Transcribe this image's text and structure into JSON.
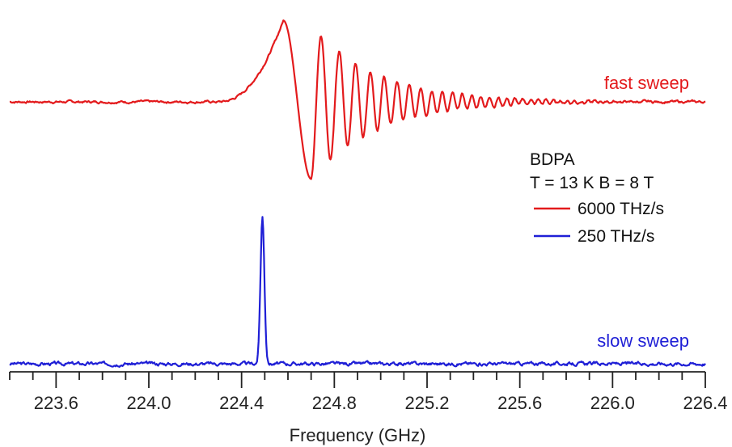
{
  "chart_data": {
    "type": "line",
    "xlabel": "Frequency (GHz)",
    "ylabel": "",
    "xlim": [
      223.4,
      226.4
    ],
    "x_ticks": [
      "223.6",
      "224.0",
      "224.4",
      "224.8",
      "225.2",
      "225.6",
      "226.0",
      "226.4"
    ],
    "x_tick_values": [
      223.6,
      224.0,
      224.4,
      224.8,
      225.2,
      225.6,
      226.0,
      226.4
    ],
    "x_minor_step": 0.1,
    "y_axis_visible": false,
    "grid": false,
    "legend": {
      "title": "BDPA",
      "subtitle": "T = 13 K B = 8 T",
      "placement": "right-middle",
      "entries": [
        {
          "label": "6000 THz/s",
          "color": "#e31a1c"
        },
        {
          "label": "250 THz/s",
          "color": "#1f1fd6"
        }
      ]
    },
    "annotations": [
      {
        "text": "fast sweep",
        "color": "#e31a1c"
      },
      {
        "text": "slow sweep",
        "color": "#1f1fd6"
      }
    ],
    "series": [
      {
        "name": "6000 THz/s",
        "color": "#e31a1c",
        "baseline": 1.0,
        "model": {
          "type": "chirp_response",
          "onset": 224.3,
          "peak_x": 224.58,
          "peak_y": 1.95,
          "trough_x": 224.7,
          "trough_y": 0.1,
          "oscillation_end": 225.6,
          "noise_amplitude": 0.03
        },
        "values_note": "ringing response; baseline with noise, rising peak, then decaying oscillations"
      },
      {
        "name": "250 THz/s",
        "color": "#1f1fd6",
        "baseline": 0.0,
        "model": {
          "type": "narrow_peak",
          "center": 224.49,
          "height": 1.8,
          "width": 0.012,
          "noise_amplitude": 0.04
        }
      }
    ]
  }
}
